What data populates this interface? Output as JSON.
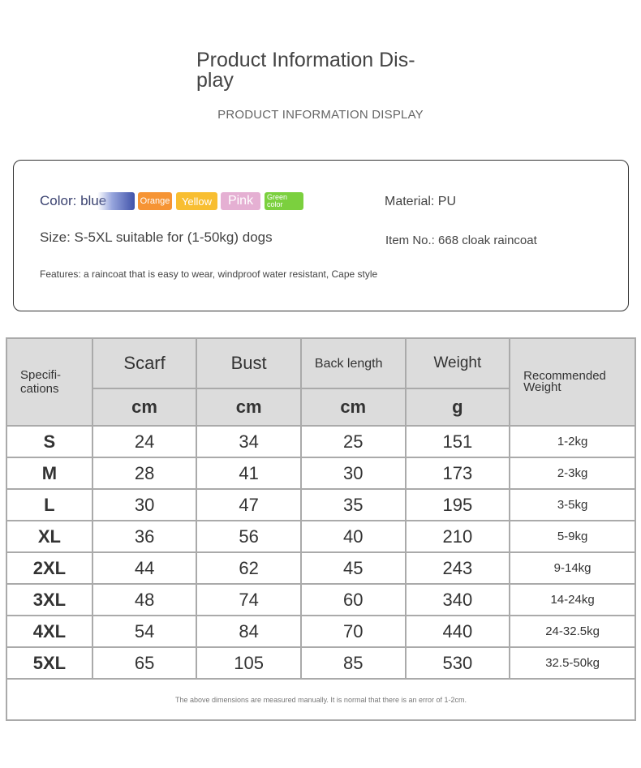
{
  "header": {
    "title": "Product Information Dis- play",
    "subtitle": "PRODUCT INFORMATION DISPLAY"
  },
  "info": {
    "color_label": "Color: blue",
    "colors": [
      {
        "label": "Orange",
        "hex": "#f6891f"
      },
      {
        "label": "Yellow",
        "hex": "#f8b71b"
      },
      {
        "label": "Pink",
        "hex": "#e3a8cf"
      },
      {
        "label": "Green color",
        "hex": "#6dcc2a"
      }
    ],
    "blue_hex": "#2b3fa0",
    "size": "Size: S-5XL suitable for (1-50kg) dogs",
    "features": "Features: a raincoat that is easy to wear, windproof water resistant, Cape style",
    "material": "Material: PU",
    "item_no": "Item No.: 668 cloak raincoat"
  },
  "table": {
    "spec_header": "Specifi- cations",
    "columns": [
      "Scarf",
      "Bust",
      "Back length",
      "Weight"
    ],
    "units": [
      "cm",
      "cm",
      "cm",
      "g"
    ],
    "rec_header": "Recommended Weight",
    "rows": [
      [
        "S",
        "24",
        "34",
        "25",
        "151",
        "1-2kg"
      ],
      [
        "M",
        "28",
        "41",
        "30",
        "173",
        "2-3kg"
      ],
      [
        "L",
        "30",
        "47",
        "35",
        "195",
        "3-5kg"
      ],
      [
        "XL",
        "36",
        "56",
        "40",
        "210",
        "5-9kg"
      ],
      [
        "2XL",
        "44",
        "62",
        "45",
        "243",
        "9-14kg"
      ],
      [
        "3XL",
        "48",
        "74",
        "60",
        "340",
        "14-24kg"
      ],
      [
        "4XL",
        "54",
        "84",
        "70",
        "440",
        "24-32.5kg"
      ],
      [
        "5XL",
        "65",
        "105",
        "85",
        "530",
        "32.5-50kg"
      ]
    ],
    "note": "The above dimensions are measured manually. It is normal that there is an error of 1-2cm."
  }
}
